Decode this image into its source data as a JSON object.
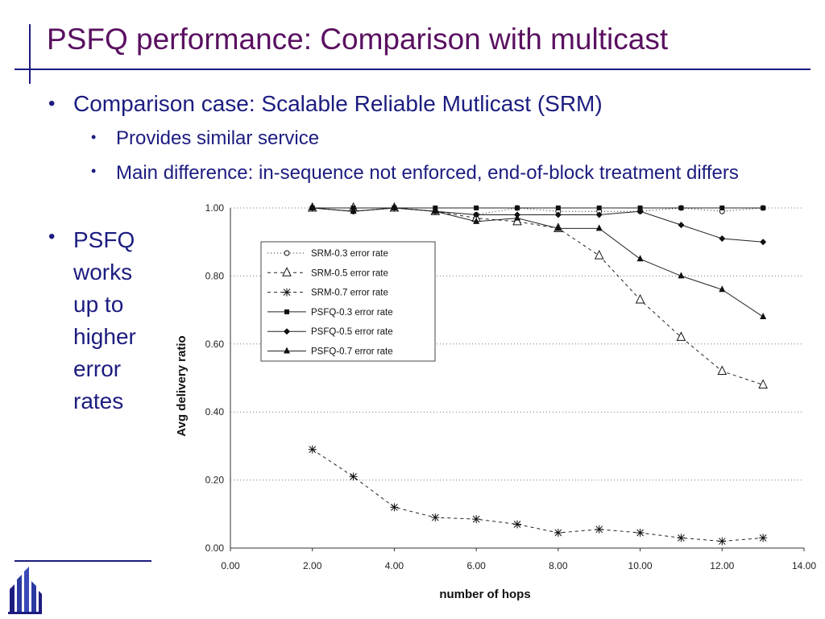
{
  "slide": {
    "title": "PSFQ performance: Comparison with multicast",
    "bullets": [
      {
        "text": "Comparison case: Scalable Reliable Mutlicast (SRM)"
      },
      {
        "text": "Provides similar service"
      },
      {
        "text": "Main difference: in-sequence not enforced, end-of-block treatment differs"
      },
      {
        "text": "PSFQ works up to higher error rates"
      }
    ],
    "logo_icon": "university-logo-icon"
  },
  "chart_data": {
    "type": "line",
    "title": "",
    "xlabel": "number of hops",
    "ylabel": "Avg delivery ratio",
    "xlim": [
      0,
      14
    ],
    "ylim": [
      0,
      1.0
    ],
    "xticks": [
      "0.00",
      "2.00",
      "4.00",
      "6.00",
      "8.00",
      "10.00",
      "12.00",
      "14.00"
    ],
    "yticks": [
      "0.00",
      "0.20",
      "0.40",
      "0.60",
      "0.80",
      "1.00"
    ],
    "grid": true,
    "legend_position": "upper-left inside plot",
    "x": [
      2,
      3,
      4,
      5,
      6,
      7,
      8,
      9,
      10,
      11,
      12,
      13
    ],
    "series": [
      {
        "name": "SRM-0.3 error rate",
        "style": "dotted",
        "marker": "circle-open",
        "values": [
          1.0,
          0.99,
          1.0,
          0.99,
          0.98,
          1.0,
          0.99,
          0.99,
          0.99,
          1.0,
          0.99,
          1.0
        ]
      },
      {
        "name": "SRM-0.5 error rate",
        "style": "dashed",
        "marker": "triangle-open",
        "values": [
          1.0,
          1.0,
          1.0,
          0.99,
          0.97,
          0.96,
          0.94,
          0.86,
          0.73,
          0.62,
          0.52,
          0.48
        ]
      },
      {
        "name": "SRM-0.7 error rate",
        "style": "dashed",
        "marker": "star",
        "values": [
          0.29,
          0.21,
          0.12,
          0.09,
          0.085,
          0.07,
          0.045,
          0.055,
          0.045,
          0.03,
          0.02,
          0.03
        ]
      },
      {
        "name": "PSFQ-0.3 error rate",
        "style": "solid",
        "marker": "square",
        "values": [
          1.0,
          1.0,
          1.0,
          1.0,
          1.0,
          1.0,
          1.0,
          1.0,
          1.0,
          1.0,
          1.0,
          1.0
        ]
      },
      {
        "name": "PSFQ-0.5 error rate",
        "style": "solid",
        "marker": "diamond",
        "values": [
          1.0,
          0.99,
          1.0,
          0.99,
          0.98,
          0.98,
          0.98,
          0.98,
          0.99,
          0.95,
          0.91,
          0.9
        ]
      },
      {
        "name": "PSFQ-0.7 error rate",
        "style": "solid",
        "marker": "triangle",
        "values": [
          1.0,
          0.99,
          1.0,
          0.99,
          0.96,
          0.97,
          0.94,
          0.94,
          0.85,
          0.8,
          0.76,
          0.68
        ]
      }
    ]
  }
}
